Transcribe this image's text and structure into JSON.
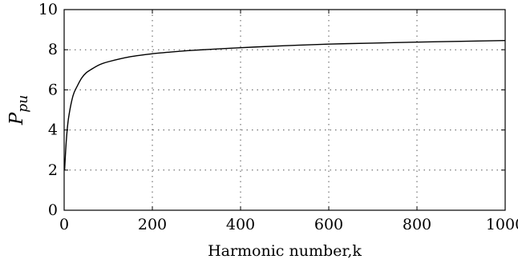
{
  "chart_data": {
    "type": "line",
    "title": "",
    "xlabel": "Harmonic number,k",
    "ylabel_main": "P",
    "ylabel_sub": "pu",
    "xlim": [
      0,
      1000
    ],
    "ylim": [
      0,
      10
    ],
    "xticks": [
      0,
      200,
      400,
      600,
      800,
      1000
    ],
    "yticks": [
      0,
      2,
      4,
      6,
      8,
      10
    ],
    "grid": true,
    "series": [
      {
        "x": [
          1,
          5,
          10,
          20,
          30,
          40,
          50,
          60,
          80,
          100,
          150,
          200,
          250,
          300,
          400,
          500,
          600,
          700,
          800,
          900,
          1000
        ],
        "values": [
          2.0,
          3.5,
          4.6,
          5.7,
          6.2,
          6.6,
          6.85,
          7.0,
          7.25,
          7.4,
          7.65,
          7.8,
          7.9,
          7.98,
          8.1,
          8.2,
          8.28,
          8.33,
          8.38,
          8.42,
          8.46
        ]
      }
    ]
  }
}
